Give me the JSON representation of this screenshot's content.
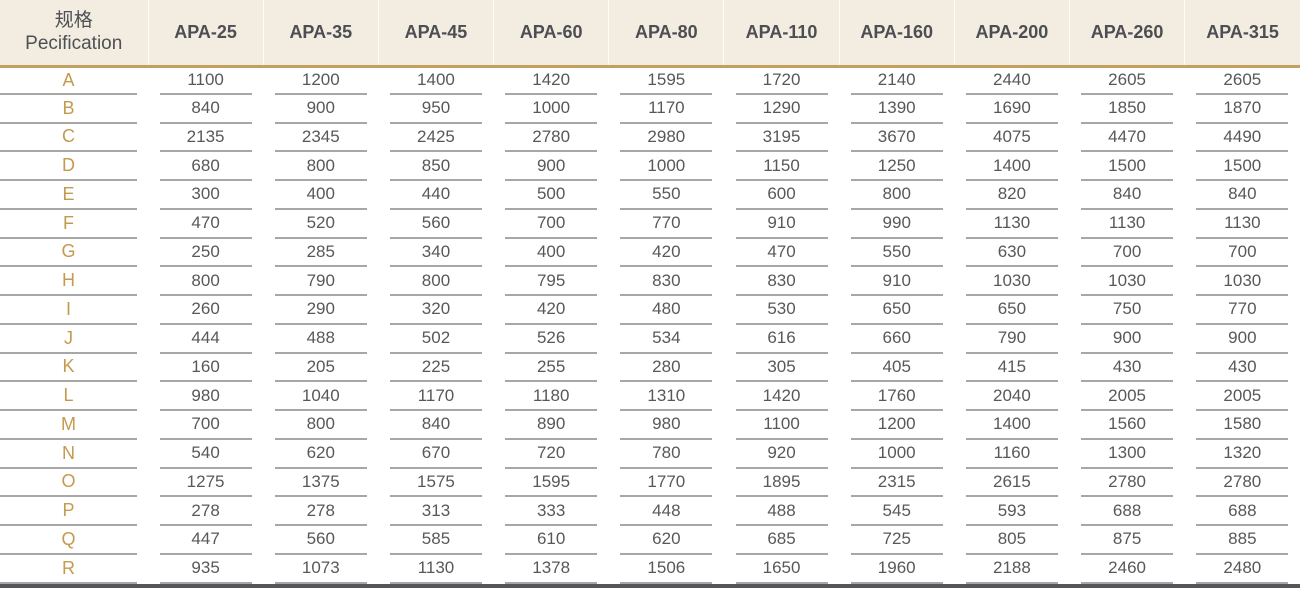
{
  "chart_data": {
    "type": "table",
    "corner_header": {
      "zh": "规格",
      "en": "Pecification"
    },
    "column_headers": [
      "APA-25",
      "APA-35",
      "APA-45",
      "APA-60",
      "APA-80",
      "APA-110",
      "APA-160",
      "APA-200",
      "APA-260",
      "APA-315"
    ],
    "rows": [
      {
        "label": "A",
        "values": [
          1100,
          1200,
          1400,
          1420,
          1595,
          1720,
          2140,
          2440,
          2605,
          2605
        ]
      },
      {
        "label": "B",
        "values": [
          840,
          900,
          950,
          1000,
          1170,
          1290,
          1390,
          1690,
          1850,
          1870
        ]
      },
      {
        "label": "C",
        "values": [
          2135,
          2345,
          2425,
          2780,
          2980,
          3195,
          3670,
          4075,
          4470,
          4490
        ]
      },
      {
        "label": "D",
        "values": [
          680,
          800,
          850,
          900,
          1000,
          1150,
          1250,
          1400,
          1500,
          1500
        ]
      },
      {
        "label": "E",
        "values": [
          300,
          400,
          440,
          500,
          550,
          600,
          800,
          820,
          840,
          840
        ]
      },
      {
        "label": "F",
        "values": [
          470,
          520,
          560,
          700,
          770,
          910,
          990,
          1130,
          1130,
          1130
        ]
      },
      {
        "label": "G",
        "values": [
          250,
          285,
          340,
          400,
          420,
          470,
          550,
          630,
          700,
          700
        ]
      },
      {
        "label": "H",
        "values": [
          800,
          790,
          800,
          795,
          830,
          830,
          910,
          1030,
          1030,
          1030
        ]
      },
      {
        "label": "I",
        "values": [
          260,
          290,
          320,
          420,
          480,
          530,
          650,
          650,
          750,
          770
        ]
      },
      {
        "label": "J",
        "values": [
          444,
          488,
          502,
          526,
          534,
          616,
          660,
          790,
          900,
          900
        ]
      },
      {
        "label": "K",
        "values": [
          160,
          205,
          225,
          255,
          280,
          305,
          405,
          415,
          430,
          430
        ]
      },
      {
        "label": "L",
        "values": [
          980,
          1040,
          1170,
          1180,
          1310,
          1420,
          1760,
          2040,
          2005,
          2005
        ]
      },
      {
        "label": "M",
        "values": [
          700,
          800,
          840,
          890,
          980,
          1100,
          1200,
          1400,
          1560,
          1580
        ]
      },
      {
        "label": "N",
        "values": [
          540,
          620,
          670,
          720,
          780,
          920,
          1000,
          1160,
          1300,
          1320
        ]
      },
      {
        "label": "O",
        "values": [
          1275,
          1375,
          1575,
          1595,
          1770,
          1895,
          2315,
          2615,
          2780,
          2780
        ]
      },
      {
        "label": "P",
        "values": [
          278,
          278,
          313,
          333,
          448,
          488,
          545,
          593,
          688,
          688
        ]
      },
      {
        "label": "Q",
        "values": [
          447,
          560,
          585,
          610,
          620,
          685,
          725,
          805,
          875,
          885
        ]
      },
      {
        "label": "R",
        "values": [
          935,
          1073,
          1130,
          1378,
          1506,
          1650,
          1960,
          2188,
          2460,
          2480
        ]
      }
    ]
  },
  "colors": {
    "header_bg": "#f2ede0",
    "header_text": "#4d4e53",
    "accent_gold_rule": "#c2a05f",
    "row_label_gold": "#c49a4e",
    "cell_text": "#57585a",
    "cell_separator": "#a7a7a7",
    "bottom_bar": "#55565a"
  }
}
